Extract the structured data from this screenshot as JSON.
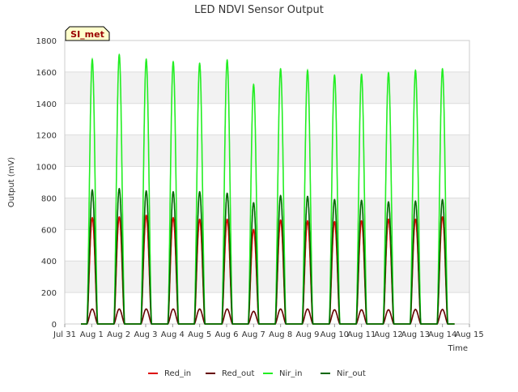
{
  "chart_data": {
    "type": "line",
    "title": "LED NDVI Sensor Output",
    "xlabel": "Time",
    "ylabel": "Output (mV)",
    "ylim": [
      0,
      1800
    ],
    "xlim": [
      0,
      15
    ],
    "yticks": [
      0,
      200,
      400,
      600,
      800,
      1000,
      1200,
      1400,
      1600,
      1800
    ],
    "xticks": [
      {
        "pos": 0,
        "label": "Jul 31"
      },
      {
        "pos": 1,
        "label": "Aug 1"
      },
      {
        "pos": 2,
        "label": "Aug 2"
      },
      {
        "pos": 3,
        "label": "Aug 3"
      },
      {
        "pos": 4,
        "label": "Aug 4"
      },
      {
        "pos": 5,
        "label": "Aug 5"
      },
      {
        "pos": 6,
        "label": "Aug 6"
      },
      {
        "pos": 7,
        "label": "Aug 7"
      },
      {
        "pos": 8,
        "label": "Aug 8"
      },
      {
        "pos": 9,
        "label": "Aug 9"
      },
      {
        "pos": 10,
        "label": "Aug 10"
      },
      {
        "pos": 11,
        "label": "Aug 11"
      },
      {
        "pos": 12,
        "label": "Aug 12"
      },
      {
        "pos": 13,
        "label": "Aug 13"
      },
      {
        "pos": 14,
        "label": "Aug 14"
      },
      {
        "pos": 15,
        "label": "Aug 15"
      }
    ],
    "annotation": "SI_met",
    "legend_position": "bottom",
    "data_range": [
      0.6,
      14.45
    ],
    "peak_width_days": 0.4,
    "peak_days": [
      1.02,
      2.02,
      3.02,
      4.02,
      5.0,
      6.02,
      7.0,
      8.0,
      9.0,
      10.0,
      11.0,
      12.0,
      13.0,
      14.0
    ],
    "series": [
      {
        "name": "Red_in",
        "color": "#dd0000",
        "peaks": [
          675,
          680,
          690,
          675,
          665,
          665,
          600,
          660,
          655,
          650,
          655,
          665,
          665,
          680
        ]
      },
      {
        "name": "Red_out",
        "color": "#660000",
        "peaks": [
          95,
          95,
          95,
          95,
          95,
          95,
          80,
          95,
          95,
          90,
          90,
          90,
          92,
          92
        ]
      },
      {
        "name": "Nir_in",
        "color": "#22ee22",
        "peaks": [
          1680,
          1710,
          1680,
          1665,
          1655,
          1675,
          1520,
          1620,
          1610,
          1580,
          1585,
          1595,
          1610,
          1620
        ]
      },
      {
        "name": "Nir_out",
        "color": "#006600",
        "peaks": [
          850,
          860,
          845,
          840,
          840,
          830,
          770,
          815,
          810,
          790,
          785,
          775,
          780,
          790
        ]
      }
    ]
  },
  "colors": {
    "band": "#f2f2f2",
    "grid": "#dddddd",
    "axis": "#cccccc",
    "annotation_bg": "#ffffcc",
    "annotation_text": "#990000"
  }
}
